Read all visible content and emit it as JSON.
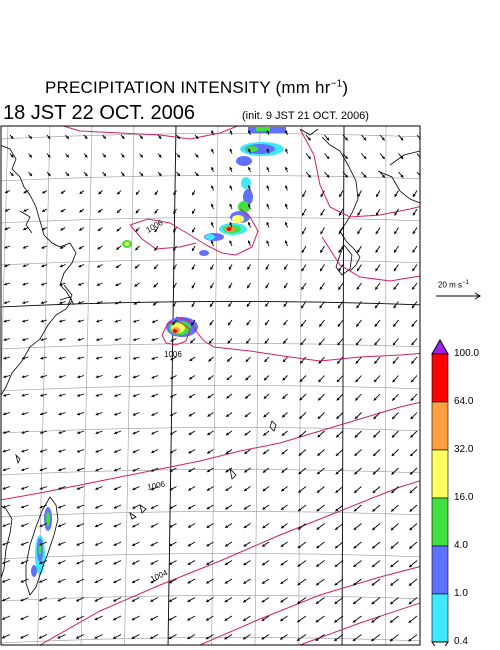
{
  "title_main": "PRECIPITATION INTENSITY (mm hr",
  "title_sup": "−1",
  "title_close": ")",
  "datetime": "18 JST 22 OCT. 2006",
  "init": "(init. 9 JST 21 OCT. 2006)",
  "wind_scale": {
    "label": "20 m s",
    "sup": "−1"
  },
  "colorbar": {
    "levels": [
      "100.0",
      "64.0",
      "32.0",
      "16.0",
      "4.0",
      "1.0",
      "0.4"
    ],
    "colors": [
      "#a020f0",
      "#ff0000",
      "#ffa040",
      "#ffff60",
      "#40e040",
      "#6070ff",
      "#40e8ff"
    ]
  },
  "isobar_labels": [
    "1006",
    "1006",
    "1006",
    "1004"
  ],
  "colors": {
    "coast": "#000000",
    "isobar": "#d0206a",
    "grid": "#999999",
    "frame": "#000000"
  }
}
